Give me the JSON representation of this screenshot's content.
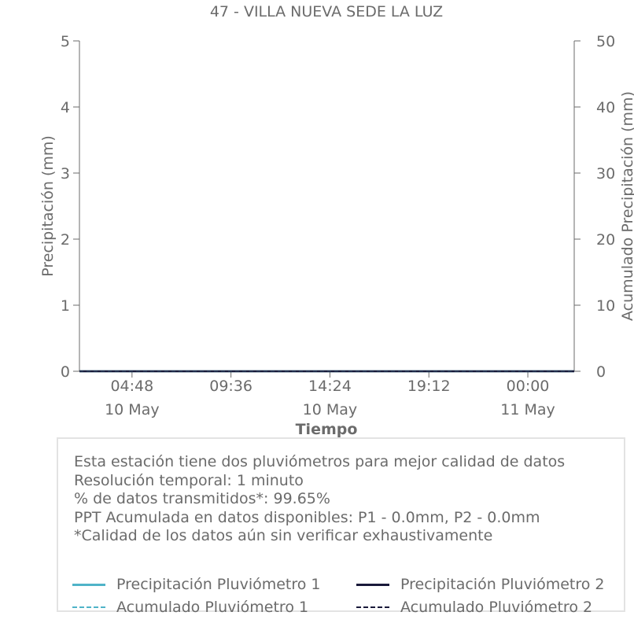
{
  "chart_data": {
    "type": "line",
    "title": "47 - VILLA NUEVA SEDE LA LUZ",
    "xlabel": "Tiempo",
    "ylabel": "Precipitación (mm)",
    "y2label": "Acumulado Precipitación (mm)",
    "ylim": [
      0,
      5
    ],
    "y2lim": [
      0,
      50
    ],
    "yticks": [
      "0",
      "1",
      "2",
      "3",
      "4",
      "5"
    ],
    "y2ticks": [
      "0",
      "10",
      "20",
      "30",
      "40",
      "50"
    ],
    "x_range": [
      "2025-05-10 02:15",
      "2025-05-11 02:15"
    ],
    "xticks": [
      {
        "time": "04:48",
        "date": "10 May",
        "x": "2025-05-10 04:48"
      },
      {
        "time": "09:36",
        "date": "",
        "x": "2025-05-10 09:36"
      },
      {
        "time": "14:24",
        "date": "10 May",
        "x": "2025-05-10 14:24"
      },
      {
        "time": "19:12",
        "date": "",
        "x": "2025-05-10 19:12"
      },
      {
        "time": "00:00",
        "date": "11 May",
        "x": "2025-05-11 00:00"
      }
    ],
    "grid": false,
    "legend_position": "bottom",
    "series": [
      {
        "name": "Precipitación Pluviómetro 1",
        "axis": "left",
        "style": "solid",
        "color": "#4fb3c8",
        "x": [
          "2025-05-10 02:15",
          "2025-05-11 02:15"
        ],
        "values": [
          0,
          0
        ]
      },
      {
        "name": "Precipitación Pluviómetro 2",
        "axis": "left",
        "style": "solid",
        "color": "#1a1a3a",
        "x": [
          "2025-05-10 02:15",
          "2025-05-11 02:15"
        ],
        "values": [
          0,
          0
        ]
      },
      {
        "name": "Acumulado Pluviómetro 1",
        "axis": "right",
        "style": "dashed",
        "color": "#4fb3c8",
        "x": [
          "2025-05-10 02:15",
          "2025-05-11 02:15"
        ],
        "values": [
          0,
          0
        ]
      },
      {
        "name": "Acumulado Pluviómetro 2",
        "axis": "right",
        "style": "dashed",
        "color": "#1a1a3a",
        "x": [
          "2025-05-10 02:15",
          "2025-05-11 02:15"
        ],
        "values": [
          0,
          0
        ]
      }
    ]
  },
  "info": {
    "lines": [
      "Esta estación tiene dos pluviómetros para mejor calidad de datos",
      "Resolución temporal: 1 minuto",
      "% de datos transmitidos*: 99.65%",
      "PPT Acumulada en datos disponibles: P1 - 0.0mm, P2 - 0.0mm",
      "*Calidad de los datos aún sin verificar exhaustivamente"
    ]
  },
  "legend": {
    "items": [
      {
        "label": "Precipitación Pluviómetro 1",
        "color": "#4fb3c8",
        "style": "solid"
      },
      {
        "label": "Precipitación Pluviómetro 2",
        "color": "#1a1a3a",
        "style": "solid"
      },
      {
        "label": "Acumulado Pluviómetro 1",
        "color": "#4fb3c8",
        "style": "dashed"
      },
      {
        "label": "Acumulado Pluviómetro 2",
        "color": "#1a1a3a",
        "style": "dashed"
      }
    ]
  }
}
